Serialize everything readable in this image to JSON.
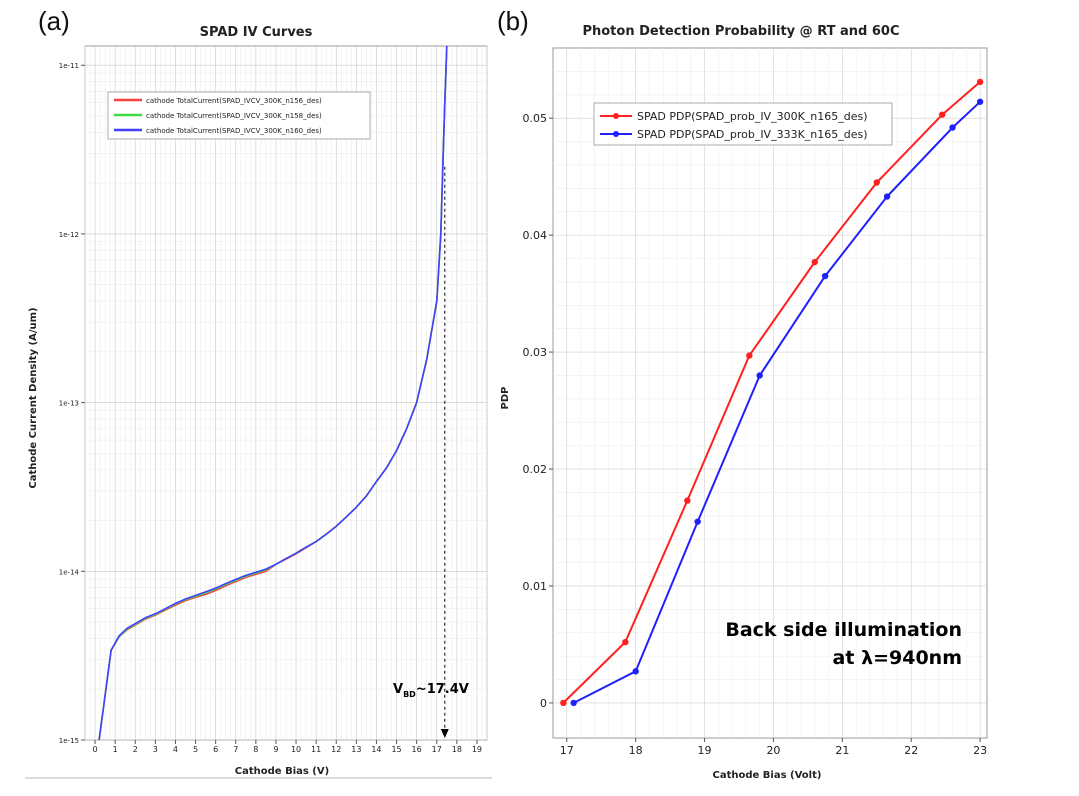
{
  "panels": {
    "a_label": "(a)",
    "b_label": "(b)"
  },
  "chart_data": [
    {
      "type": "line",
      "title": "SPAD IV Curves",
      "xlabel": "Cathode Bias (V)",
      "ylabel": "Cathode Current Density (A/um)",
      "y_scale": "log",
      "xlim": [
        -0.5,
        19.5
      ],
      "ylim": [
        1e-15,
        1.3e-11
      ],
      "x_ticks": [
        0,
        1,
        2,
        3,
        4,
        5,
        6,
        7,
        8,
        9,
        10,
        11,
        12,
        13,
        14,
        15,
        16,
        17,
        18,
        19
      ],
      "y_ticks": [
        {
          "value": 1e-15,
          "label": "1e-15"
        },
        {
          "value": 1e-14,
          "label": "1e-14"
        },
        {
          "value": 1e-13,
          "label": "1e-13"
        },
        {
          "value": 1e-12,
          "label": "1e-12"
        },
        {
          "value": 1e-11,
          "label": "1e-11"
        }
      ],
      "grid": true,
      "legend_position": "top-left",
      "series": [
        {
          "name": "cathode TotalCurrent(SPAD_IVCV_300K_n156_des)",
          "color": "#ff4040",
          "x": [
            0.2,
            0.4,
            0.8,
            1.2,
            1.6,
            2.0,
            2.5,
            3.0,
            3.5,
            4.0,
            4.5,
            5.0,
            5.5,
            6.0,
            6.5,
            7.0,
            7.5,
            8.0,
            8.5,
            9.0,
            9.5,
            10.0,
            10.5,
            11.0,
            11.5,
            12.0,
            12.5,
            13.0,
            13.5,
            14.0,
            14.5,
            15.0,
            15.5,
            16.0,
            16.5,
            17.0,
            17.2,
            17.3,
            17.4,
            17.5
          ],
          "y": [
            1e-15,
            1.5e-15,
            3.4e-15,
            4.1e-15,
            4.5e-15,
            4.8e-15,
            5.2e-15,
            5.5e-15,
            5.9e-15,
            6.3e-15,
            6.7e-15,
            7e-15,
            7.3e-15,
            7.7e-15,
            8.2e-15,
            8.7e-15,
            9.2e-15,
            9.6e-15,
            1e-14,
            1.1e-14,
            1.18e-14,
            1.27e-14,
            1.38e-14,
            1.5e-14,
            1.66e-14,
            1.85e-14,
            2.1e-14,
            2.4e-14,
            2.8e-14,
            3.4e-14,
            4.1e-14,
            5.2e-14,
            7e-14,
            1e-13,
            1.8e-13,
            4e-13,
            1e-12,
            2.5e-12,
            6e-12,
            1.3e-11
          ]
        },
        {
          "name": "cathode TotalCurrent(SPAD_IVCV_300K_n158_des)",
          "color": "#40dd40",
          "x": [
            0.2,
            0.4,
            0.8,
            1.2,
            1.6,
            2.0,
            2.5,
            3.0,
            3.5,
            4.0,
            4.5,
            5.0,
            5.5,
            6.0,
            6.5,
            7.0,
            7.5,
            8.0,
            8.5,
            9.0,
            9.5,
            10.0,
            10.5,
            11.0,
            11.5,
            12.0,
            12.5,
            13.0,
            13.5,
            14.0,
            14.5,
            15.0,
            15.5,
            16.0,
            16.5,
            17.0,
            17.2,
            17.3,
            17.4,
            17.5
          ],
          "y": [
            1e-15,
            1.5e-15,
            3.4e-15,
            4.1e-15,
            4.55e-15,
            4.85e-15,
            5.25e-15,
            5.55e-15,
            5.95e-15,
            6.4e-15,
            6.8e-15,
            7.1e-15,
            7.45e-15,
            7.85e-15,
            8.35e-15,
            8.85e-15,
            9.35e-15,
            9.75e-15,
            1.02e-14,
            1.1e-14,
            1.19e-14,
            1.28e-14,
            1.39e-14,
            1.5e-14,
            1.66e-14,
            1.85e-14,
            2.1e-14,
            2.4e-14,
            2.8e-14,
            3.4e-14,
            4.1e-14,
            5.2e-14,
            7e-14,
            1e-13,
            1.8e-13,
            4e-13,
            1e-12,
            2.5e-12,
            6e-12,
            1.3e-11
          ]
        },
        {
          "name": "cathode TotalCurrent(SPAD_IVCV_300K_n160_des)",
          "color": "#4040ff",
          "x": [
            0.2,
            0.4,
            0.8,
            1.2,
            1.6,
            2.0,
            2.5,
            3.0,
            3.5,
            4.0,
            4.5,
            5.0,
            5.5,
            6.0,
            6.5,
            7.0,
            7.5,
            8.0,
            8.5,
            9.0,
            9.5,
            10.0,
            10.5,
            11.0,
            11.5,
            12.0,
            12.5,
            13.0,
            13.5,
            14.0,
            14.5,
            15.0,
            15.5,
            16.0,
            16.5,
            17.0,
            17.2,
            17.3,
            17.4,
            17.5
          ],
          "y": [
            1e-15,
            1.5e-15,
            3.4e-15,
            4.15e-15,
            4.6e-15,
            4.9e-15,
            5.3e-15,
            5.6e-15,
            6e-15,
            6.45e-15,
            6.85e-15,
            7.2e-15,
            7.55e-15,
            7.95e-15,
            8.45e-15,
            8.95e-15,
            9.45e-15,
            9.85e-15,
            1.03e-14,
            1.1e-14,
            1.19e-14,
            1.28e-14,
            1.39e-14,
            1.5e-14,
            1.66e-14,
            1.85e-14,
            2.1e-14,
            2.4e-14,
            2.8e-14,
            3.4e-14,
            4.1e-14,
            5.2e-14,
            7e-14,
            1e-13,
            1.8e-13,
            4e-13,
            1e-12,
            2.5e-12,
            6e-12,
            1.3e-11
          ]
        }
      ],
      "annotation": {
        "label_main": "V",
        "label_sub": "BD",
        "label_rest": "~17.4V",
        "x": 17.4
      }
    },
    {
      "type": "line",
      "title": "Photon Detection Probability @ RT and 60C",
      "xlabel": "Cathode Bias (Volt)",
      "ylabel": "PDP",
      "xlim": [
        16.8,
        23.1
      ],
      "ylim": [
        -0.003,
        0.056
      ],
      "x_ticks": [
        17,
        18,
        19,
        20,
        21,
        22,
        23
      ],
      "y_ticks": [
        0,
        0.01,
        0.02,
        0.03,
        0.04,
        0.05
      ],
      "y_tick_labels": [
        "0",
        "0.01",
        "0.02",
        "0.03",
        "0.04",
        "0.05"
      ],
      "grid": true,
      "legend_position": "top-left",
      "series": [
        {
          "name": "SPAD PDP(SPAD_prob_IV_300K_n165_des)",
          "color": "#ff2020",
          "x": [
            16.95,
            17.85,
            18.75,
            19.65,
            20.6,
            21.5,
            22.45,
            23.0
          ],
          "y": [
            0,
            0.0052,
            0.0173,
            0.0297,
            0.0377,
            0.0445,
            0.0503,
            0.0531
          ]
        },
        {
          "name": "SPAD PDP(SPAD_prob_IV_333K_n165_des)",
          "color": "#2020ff",
          "x": [
            17.1,
            18.0,
            18.9,
            19.8,
            20.75,
            21.65,
            22.6,
            23.0
          ],
          "y": [
            0,
            0.0027,
            0.0155,
            0.028,
            0.0365,
            0.0433,
            0.0492,
            0.0514
          ]
        }
      ],
      "annotation": {
        "line1": "Back side illumination",
        "line2": "at λ=940nm"
      }
    }
  ]
}
